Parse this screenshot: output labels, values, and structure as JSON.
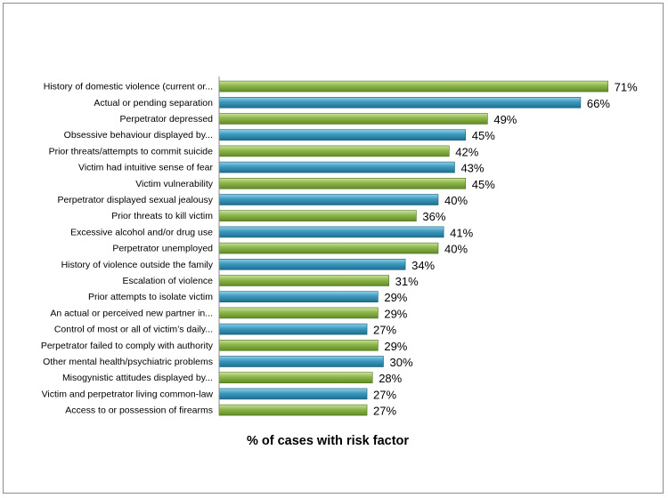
{
  "chart_data": {
    "type": "bar",
    "orientation": "horizontal",
    "xlabel": "% of cases with risk factor",
    "ylabel": "",
    "value_suffix": "%",
    "xlim": [
      0,
      80
    ],
    "grid": false,
    "legend": "none",
    "colors": {
      "green": "#8db54a",
      "blue": "#3c99bd"
    },
    "categories": [
      "History of domestic violence (current or...",
      "Actual or pending separation",
      "Perpetrator depressed",
      "Obsessive behaviour displayed by...",
      "Prior threats/attempts to commit suicide",
      "Victim had intuitive sense of fear",
      "Victim vulnerability",
      "Perpetrator displayed sexual jealousy",
      "Prior threats to kill victim",
      "Excessive alcohol and/or drug use",
      "Perpetrator unemployed",
      "History of violence outside the family",
      "Escalation of violence",
      "Prior attempts to isolate victim",
      "An actual or perceived new partner in...",
      "Control of most or all of victim’s daily...",
      "Perpetrator failed to comply with authority",
      "Other mental health/psychiatric problems",
      "Misogynistic attitudes displayed by...",
      "Victim and perpetrator living common-law",
      "Access to or possession of firearms"
    ],
    "values": [
      71,
      66,
      49,
      45,
      42,
      43,
      45,
      40,
      36,
      41,
      40,
      34,
      31,
      29,
      29,
      27,
      29,
      30,
      28,
      27,
      27
    ],
    "bar_colors": [
      "green",
      "blue",
      "green",
      "blue",
      "green",
      "blue",
      "green",
      "blue",
      "green",
      "blue",
      "green",
      "blue",
      "green",
      "blue",
      "green",
      "blue",
      "green",
      "blue",
      "green",
      "blue",
      "green"
    ]
  }
}
